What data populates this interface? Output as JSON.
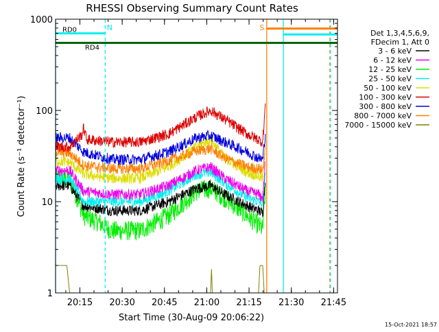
{
  "chart_data": {
    "type": "line",
    "title": "RHESSI Observing Summary Count Rates",
    "xlabel": "Start Time (30-Aug-09 20:06:22)",
    "ylabel": "Count Rate (s⁻¹ detector⁻¹)",
    "x_unit": "minutes after 20:06:22",
    "xlim": [
      0,
      100
    ],
    "ylim": [
      1,
      1000
    ],
    "yscale": "log",
    "grid": false,
    "legend_placement": "right",
    "x_ticks": [
      {
        "x": 8.63,
        "label": "20:15"
      },
      {
        "x": 23.63,
        "label": "20:30"
      },
      {
        "x": 38.63,
        "label": "20:45"
      },
      {
        "x": 53.63,
        "label": "21:00"
      },
      {
        "x": 68.63,
        "label": "21:15"
      },
      {
        "x": 83.63,
        "label": "21:30"
      },
      {
        "x": 98.63,
        "label": "21:45"
      }
    ],
    "y_ticks": [
      {
        "y": 1,
        "label": "1"
      },
      {
        "y": 10,
        "label": "10"
      },
      {
        "y": 100,
        "label": "100"
      },
      {
        "y": 1000,
        "label": "1000"
      }
    ],
    "legend_header": [
      "Det 1,3,4,5,6,9,",
      "FDecim 1, Att 0"
    ],
    "series": [
      {
        "name": "3 - 6 keV",
        "color": "#000000",
        "points": [
          [
            0,
            15
          ],
          [
            5,
            15
          ],
          [
            10,
            9
          ],
          [
            20,
            8
          ],
          [
            30,
            8
          ],
          [
            40,
            10
          ],
          [
            50,
            14
          ],
          [
            55,
            15
          ],
          [
            60,
            12
          ],
          [
            68,
            9
          ],
          [
            72,
            8
          ],
          [
            73.5,
            7.5
          ],
          [
            74.5,
            20
          ]
        ]
      },
      {
        "name": "6 - 12 keV",
        "color": "#ee00ee",
        "points": [
          [
            0,
            22
          ],
          [
            5,
            22
          ],
          [
            10,
            13
          ],
          [
            20,
            12
          ],
          [
            30,
            12
          ],
          [
            40,
            15
          ],
          [
            50,
            22
          ],
          [
            55,
            24
          ],
          [
            60,
            18
          ],
          [
            68,
            13
          ],
          [
            72,
            12
          ],
          [
            73.5,
            11
          ],
          [
            74.5,
            30
          ]
        ]
      },
      {
        "name": "12 - 25 keV",
        "color": "#00ee00",
        "points": [
          [
            0,
            18
          ],
          [
            5,
            18
          ],
          [
            10,
            7
          ],
          [
            15,
            6
          ],
          [
            20,
            4.8
          ],
          [
            30,
            4.8
          ],
          [
            40,
            7
          ],
          [
            50,
            13
          ],
          [
            55,
            14
          ],
          [
            60,
            11
          ],
          [
            68,
            7
          ],
          [
            72,
            5.5
          ],
          [
            73.5,
            5
          ],
          [
            74.5,
            14
          ]
        ]
      },
      {
        "name": "25 - 50 keV",
        "color": "#00eeee",
        "points": [
          [
            0,
            18
          ],
          [
            5,
            18
          ],
          [
            10,
            10
          ],
          [
            20,
            10
          ],
          [
            30,
            10
          ],
          [
            40,
            13
          ],
          [
            50,
            20
          ],
          [
            55,
            21
          ],
          [
            60,
            16
          ],
          [
            68,
            11
          ],
          [
            72,
            10
          ],
          [
            73.5,
            9.5
          ],
          [
            74.5,
            24
          ]
        ]
      },
      {
        "name": "50 - 100 keV",
        "color": "#dddd00",
        "points": [
          [
            0,
            28
          ],
          [
            5,
            27
          ],
          [
            10,
            20
          ],
          [
            20,
            18
          ],
          [
            30,
            18
          ],
          [
            40,
            24
          ],
          [
            50,
            40
          ],
          [
            55,
            48
          ],
          [
            60,
            30
          ],
          [
            68,
            21
          ],
          [
            72,
            19
          ],
          [
            73.5,
            18
          ],
          [
            74.5,
            40
          ]
        ]
      },
      {
        "name": "100 - 300 keV",
        "color": "#dd0000",
        "points": [
          [
            0,
            40
          ],
          [
            5,
            40
          ],
          [
            9.5,
            55
          ],
          [
            10,
            65
          ],
          [
            11,
            48
          ],
          [
            20,
            45
          ],
          [
            30,
            45
          ],
          [
            40,
            55
          ],
          [
            50,
            85
          ],
          [
            55,
            100
          ],
          [
            60,
            80
          ],
          [
            68,
            55
          ],
          [
            72,
            48
          ],
          [
            73.5,
            45
          ],
          [
            74.5,
            130
          ]
        ]
      },
      {
        "name": "300 - 800 keV",
        "color": "#0000dd",
        "points": [
          [
            0,
            50
          ],
          [
            5,
            50
          ],
          [
            10,
            35
          ],
          [
            20,
            29
          ],
          [
            30,
            29
          ],
          [
            40,
            35
          ],
          [
            50,
            50
          ],
          [
            55,
            53
          ],
          [
            60,
            45
          ],
          [
            68,
            35
          ],
          [
            72,
            30
          ],
          [
            73.5,
            29
          ],
          [
            74.5,
            60
          ]
        ]
      },
      {
        "name": "800 - 7000 keV",
        "color": "#ff7f00",
        "points": [
          [
            0,
            35
          ],
          [
            5,
            34
          ],
          [
            10,
            25
          ],
          [
            20,
            23
          ],
          [
            30,
            23
          ],
          [
            40,
            28
          ],
          [
            50,
            36
          ],
          [
            55,
            38
          ],
          [
            60,
            30
          ],
          [
            68,
            24
          ],
          [
            72,
            23
          ],
          [
            73.5,
            22
          ],
          [
            74.5,
            45
          ]
        ]
      },
      {
        "name": "7000 - 15000 keV",
        "color": "#808000",
        "points": [
          [
            0,
            2
          ],
          [
            4,
            2
          ],
          [
            5,
            1
          ],
          [
            55,
            1
          ],
          [
            55.3,
            1.9
          ],
          [
            55.6,
            1
          ],
          [
            72,
            1
          ],
          [
            72.5,
            2
          ],
          [
            73.5,
            2
          ],
          [
            74,
            1
          ],
          [
            100,
            1
          ]
        ]
      }
    ],
    "annotations": {
      "vertical_lines": [
        {
          "x": 0,
          "color": "#00eeee",
          "style": "solid"
        },
        {
          "x": 17.6,
          "color": "#00eeee",
          "style": "dashed"
        },
        {
          "x": 74.9,
          "color": "#ff7f00",
          "style": "solid"
        },
        {
          "x": 80.8,
          "color": "#00eeee",
          "style": "solid"
        },
        {
          "x": 97.3,
          "color": "#ff7f00",
          "style": "dashed"
        },
        {
          "x": 97.5,
          "color": "#00eeee",
          "style": "dashed"
        }
      ],
      "bars": [
        {
          "label": "RD0",
          "x_from": 0,
          "x_to": 17.6,
          "y": 700,
          "color": "#00eeee",
          "label_x": 5
        },
        {
          "label": "RD4",
          "x_from": 0,
          "x_to": 100,
          "y": 550,
          "color": "#006400",
          "label_x": 13
        },
        {
          "label": "",
          "x_from": 80.8,
          "x_to": 100,
          "y": 680,
          "color": "#00eeee"
        },
        {
          "label": "",
          "x_from": 74.9,
          "x_to": 100,
          "y": 790,
          "color": "#ff7f00"
        }
      ],
      "text_labels": [
        {
          "label": "N",
          "x": 19.2,
          "color": "#00eeee"
        },
        {
          "label": "S",
          "x": 73.2,
          "color": "#ff7f00"
        }
      ]
    }
  },
  "footer_timestamp": "15-Oct-2021 18:57"
}
